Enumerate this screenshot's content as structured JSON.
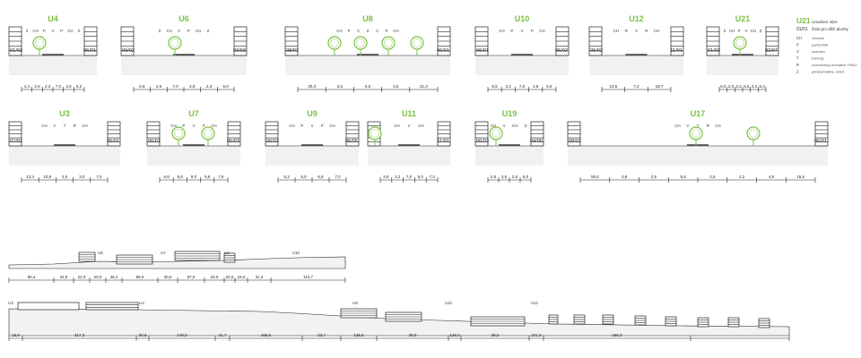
{
  "sections": [
    {
      "id": "U4",
      "labels": [
        "Z",
        "CH",
        "P",
        "V",
        "P",
        "CH",
        "Z"
      ],
      "plot_left": "01/03",
      "plot_right": "06/01",
      "dims": [
        "4,4",
        "2,8",
        "2,3",
        "7,0",
        "2,6",
        "5,2"
      ],
      "trees": [
        44
      ]
    },
    {
      "id": "U6",
      "labels": [
        "Z",
        "CH",
        "V",
        "P",
        "CH",
        "Z"
      ],
      "plot_left": "09/02",
      "plot_right": "03/03",
      "dims": [
        "6,8",
        "2,5",
        "7,0",
        "2,8",
        "2,3",
        "6,0"
      ],
      "trees": [
        195
      ]
    },
    {
      "id": "U8",
      "labels": [
        "CH",
        "P",
        "V",
        "Z",
        "V",
        "P",
        "CH"
      ],
      "plot_left": "08/01",
      "plot_right": "06/01",
      "dims": [
        "20,3",
        "3,5",
        "6,8",
        "3,5",
        "21,3"
      ],
      "trees": [
        373,
        402,
        433,
        465
      ]
    },
    {
      "id": "U10",
      "labels": [
        "CH",
        "P",
        "V",
        "P",
        "CH"
      ],
      "plot_left": "06/01",
      "plot_right": "06/02",
      "dims": [
        "6,5",
        "2,2",
        "7,0",
        "2,5",
        "6,5"
      ],
      "trees": []
    },
    {
      "id": "U12",
      "labels": [
        "CH",
        "R",
        "V",
        "R",
        "CH"
      ],
      "plot_left": "06/02",
      "plot_right": "11/01",
      "dims": [
        "10,5",
        "7,2",
        "18,7"
      ],
      "trees": []
    },
    {
      "id": "U21",
      "labels": [
        "Z",
        "CH",
        "P",
        "V",
        "CH",
        "Z"
      ],
      "plot_left": "01/03",
      "plot_right": "02/07",
      "dims": [
        "6,0",
        "2,0",
        "2,2",
        "5,5",
        "2,2",
        "5,0"
      ],
      "trees": [
        825
      ]
    },
    {
      "id": "U3",
      "labels": [
        "CH",
        "V",
        "T",
        "R",
        "CH"
      ],
      "plot_left": "07/01",
      "plot_right": "06/01",
      "dims": [
        "13,4",
        "10,8",
        "2,5",
        "3,0",
        "7,0"
      ],
      "trees": []
    },
    {
      "id": "U7",
      "labels": [
        "CH",
        "P",
        "V",
        "P",
        "CH"
      ],
      "plot_left": "06/01",
      "plot_right": "06/03",
      "dims": [
        "6,8",
        "5,8",
        "8,0",
        "5,8",
        "7,8"
      ],
      "trees": [
        199,
        232
      ]
    },
    {
      "id": "U9",
      "labels": [
        "CH",
        "P",
        "V",
        "P",
        "CH"
      ],
      "plot_left": "06/02",
      "plot_right": "06/05",
      "dims": [
        "5,3",
        "5,0",
        "6,8",
        "7,0"
      ],
      "trees": []
    },
    {
      "id": "U11",
      "labels": [
        "CH",
        "V",
        "CH"
      ],
      "plot_left": "",
      "plot_right": "11/01",
      "dims": [
        "2,8",
        "2,2",
        "7,0",
        "5,0",
        "7,3"
      ],
      "trees": [
        418
      ]
    },
    {
      "id": "U19",
      "labels": [
        "CH",
        "V",
        "CH",
        "Z"
      ],
      "plot_left": "06/03",
      "plot_right": "04/06",
      "dims": [
        "2,5",
        "3,5",
        "2,5",
        "6,0"
      ],
      "trees": [
        553
      ]
    },
    {
      "id": "U17",
      "labels": [
        "CH",
        "V",
        "T",
        "R",
        "CH"
      ],
      "plot_left": "08/01",
      "plot_right": "06/01",
      "dims": [
        "55,0",
        "3,8",
        "2,5",
        "5,6",
        "2,5",
        "2,2",
        "4,8",
        "15,6"
      ],
      "trees": [
        776,
        840
      ]
    }
  ],
  "legend": {
    "title": "U21",
    "subtitle": "označení ulice",
    "plot_code": "01/01",
    "plot_note": "číslo pro dílčí plochy",
    "items": [
      {
        "key": "CH",
        "value": "chodník"
      },
      {
        "key": "P",
        "value": "parkoviště"
      },
      {
        "key": "V",
        "value": "vozovka"
      },
      {
        "key": "T",
        "value": "tramvaj"
      },
      {
        "key": "R",
        "value": "víceúčelový ochodník TRAG"
      },
      {
        "key": "Z",
        "value": "předzahrádka, zeleň"
      }
    ]
  },
  "long_section_1": {
    "labels": [
      "U5",
      "U7",
      "U9",
      "U10"
    ],
    "dims": [
      "80,4",
      "31,5",
      "22,0",
      "20,0",
      "36,1",
      "86,0",
      "30,6",
      "87,0",
      "24,0",
      "20,0",
      "15,0",
      "31,3",
      "114,7"
    ]
  },
  "long_section_2": {
    "labels": [
      "U3",
      "U4",
      "U8",
      "U10",
      "U12"
    ],
    "dims": [
      "18,0",
      "317,3",
      "30,6",
      "149,0",
      "31,7",
      "168,5",
      "33,7",
      "135,5",
      "39,0",
      "125,0",
      "38,0",
      "241,9",
      "185,0"
    ]
  },
  "colors": {
    "accent": "#7bc043",
    "line": "#222222",
    "grey": "#d9d9d9"
  }
}
